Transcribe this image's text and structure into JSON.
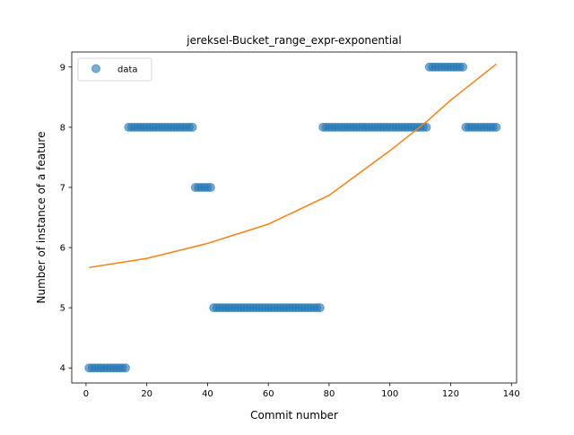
{
  "chart_data": {
    "type": "scatter",
    "title": "jereksel-Bucket_range_expr-exponential",
    "xlabel": "Commit number",
    "ylabel": "Number of instance of a feature",
    "xlim": [
      -4.7,
      141.7
    ],
    "ylim": [
      3.75,
      9.25
    ],
    "xticks": [
      0,
      20,
      40,
      60,
      80,
      100,
      120,
      140
    ],
    "yticks": [
      4,
      5,
      6,
      7,
      8,
      9
    ],
    "grid": false,
    "legend": {
      "placement": "top-left",
      "entries": [
        "data"
      ]
    },
    "series": [
      {
        "name": "data",
        "kind": "scatter",
        "color": "#1f77b4",
        "segments": [
          {
            "x_from": 1,
            "x_to": 13,
            "y": 4
          },
          {
            "x_from": 14,
            "x_to": 35,
            "y": 8
          },
          {
            "x_from": 36,
            "x_to": 41,
            "y": 7
          },
          {
            "x_from": 42,
            "x_to": 77,
            "y": 5
          },
          {
            "x_from": 78,
            "x_to": 112,
            "y": 8
          },
          {
            "x_from": 113,
            "x_to": 124,
            "y": 9
          },
          {
            "x_from": 125,
            "x_to": 135,
            "y": 8
          }
        ]
      },
      {
        "kind": "line",
        "color": "#ff7f0e",
        "x": [
          1,
          20,
          40,
          60,
          80,
          100,
          112,
          120,
          135
        ],
        "y": [
          5.67,
          5.82,
          6.07,
          6.39,
          6.87,
          7.61,
          8.09,
          8.45,
          9.05
        ]
      }
    ]
  }
}
